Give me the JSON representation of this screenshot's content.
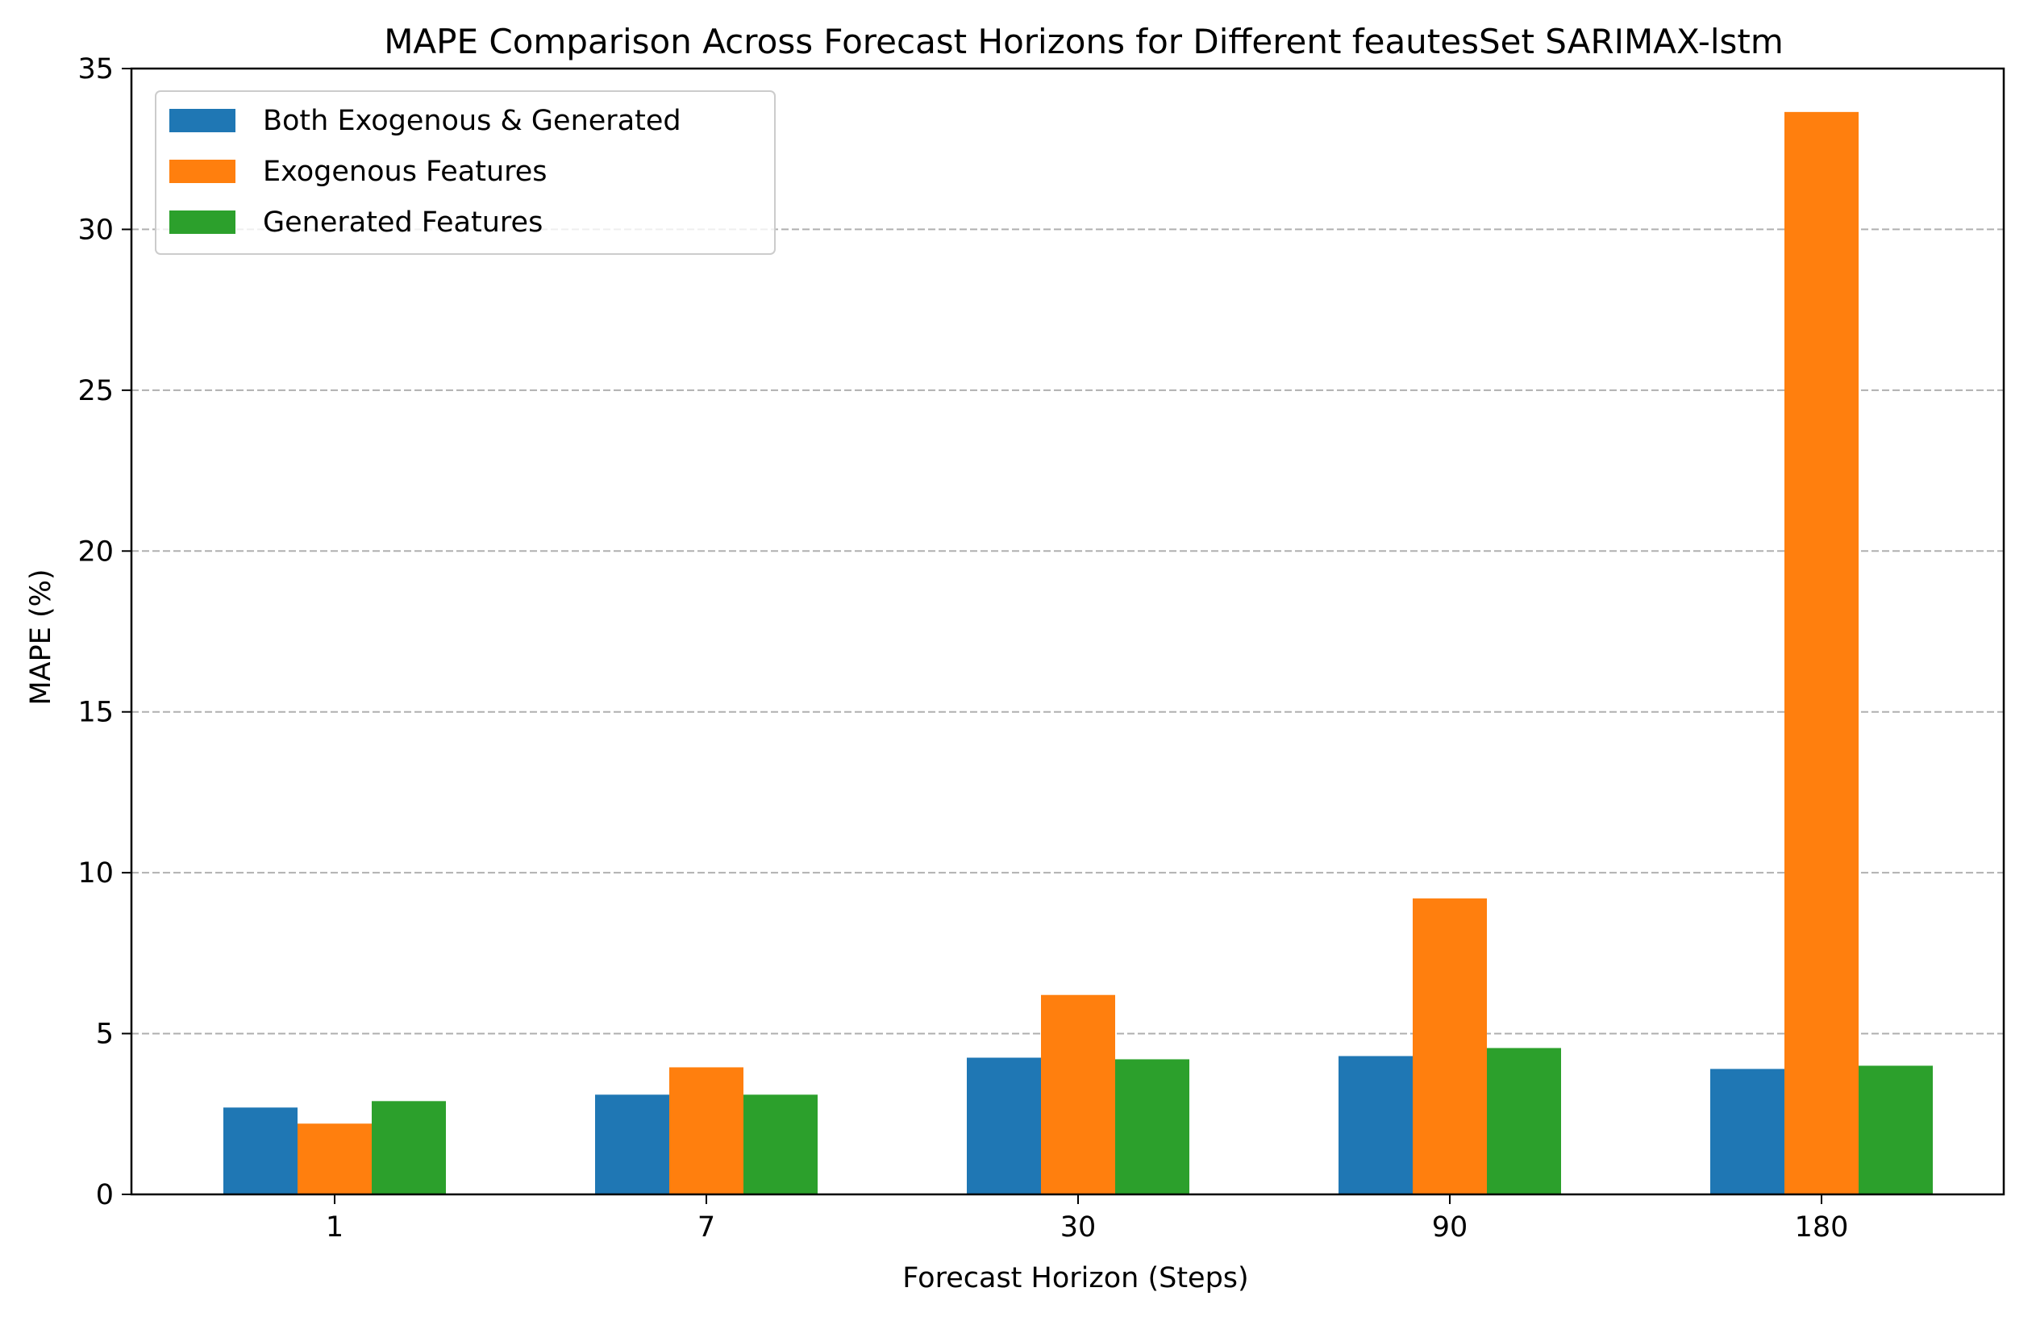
{
  "chart_data": {
    "type": "bar",
    "title": "MAPE Comparison Across Forecast Horizons for Different feautesSet SARIMAX-lstm",
    "xlabel": "Forecast Horizon (Steps)",
    "ylabel": "MAPE (%)",
    "categories": [
      "1",
      "7",
      "30",
      "90",
      "180"
    ],
    "ylim": [
      0,
      35
    ],
    "yticks": [
      0,
      5,
      10,
      15,
      20,
      25,
      30,
      35
    ],
    "grid": "y, dashed",
    "legend_position": "top-left",
    "series": [
      {
        "name": "Both Exogenous & Generated",
        "color": "#1f77b4",
        "values": [
          2.7,
          3.1,
          4.25,
          4.3,
          3.9
        ]
      },
      {
        "name": "Exogenous Features",
        "color": "#ff7f0e",
        "values": [
          2.2,
          3.95,
          6.2,
          9.2,
          33.65
        ]
      },
      {
        "name": "Generated Features",
        "color": "#2ca02c",
        "values": [
          2.9,
          3.1,
          4.2,
          4.55,
          4.0
        ]
      }
    ]
  }
}
